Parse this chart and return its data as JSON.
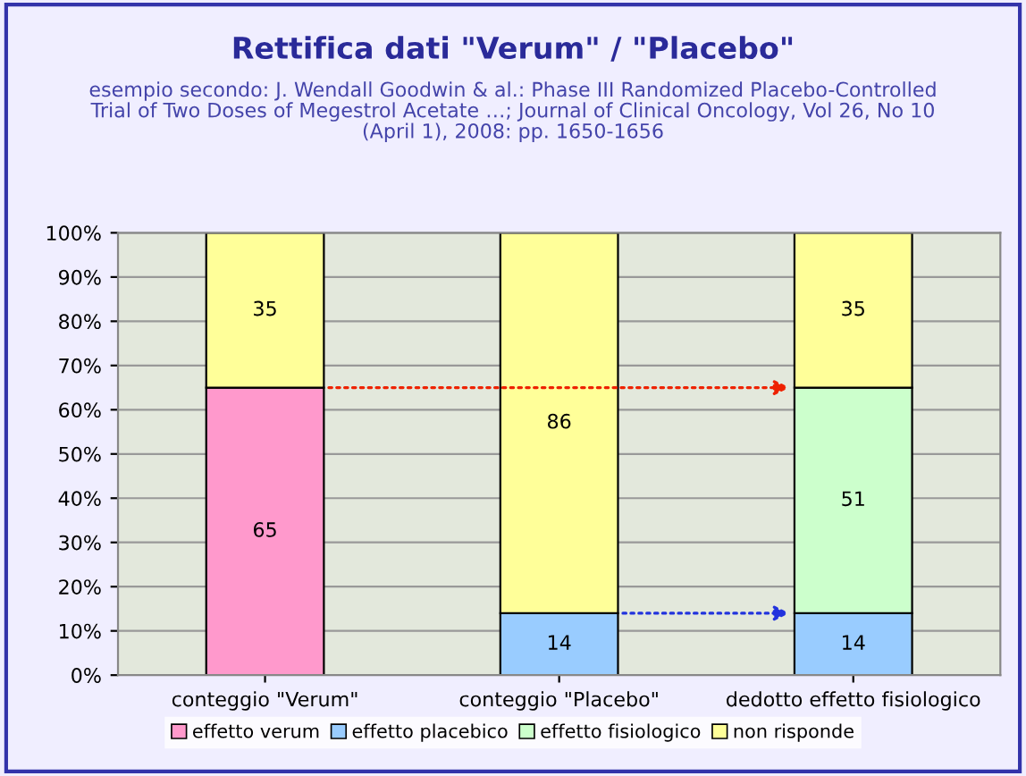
{
  "chart_data": {
    "type": "bar",
    "stacked": true,
    "title": "Rettifica dati \"Verum\" / \"Placebo\"",
    "subtitle": "esempio secondo: J. Wendall Goodwin & al.: Phase III Randomized Placebo-Controlled\nTrial of Two Doses of Megestrol Acetate …; Journal of Clinical Oncology, Vol 26, No 10\n(April 1), 2008: pp. 1650-1656",
    "categories": [
      "conteggio \"Verum\"",
      "conteggio \"Placebo\"",
      "dedotto effetto fisiologico"
    ],
    "series": [
      {
        "name": "effetto verum",
        "color": "#ff99cc",
        "values": [
          65,
          null,
          null
        ]
      },
      {
        "name": "effetto placebico",
        "color": "#99ccff",
        "values": [
          null,
          14,
          14
        ]
      },
      {
        "name": "effetto fisiologico",
        "color": "#ccffcc",
        "values": [
          null,
          null,
          51
        ]
      },
      {
        "name": "non risponde",
        "color": "#ffff99",
        "values": [
          35,
          86,
          35
        ]
      }
    ],
    "ylim": [
      0,
      100
    ],
    "yticks": [
      {
        "value": 0,
        "label": "0%"
      },
      {
        "value": 10,
        "label": "10%"
      },
      {
        "value": 20,
        "label": "20%"
      },
      {
        "value": 30,
        "label": "30%"
      },
      {
        "value": 40,
        "label": "40%"
      },
      {
        "value": 50,
        "label": "50%"
      },
      {
        "value": 60,
        "label": "60%"
      },
      {
        "value": 70,
        "label": "70%"
      },
      {
        "value": 80,
        "label": "80%"
      },
      {
        "value": 90,
        "label": "90%"
      },
      {
        "value": 100,
        "label": "100%"
      }
    ],
    "grid": "y",
    "legend": "bottom",
    "data_labels": true
  }
}
